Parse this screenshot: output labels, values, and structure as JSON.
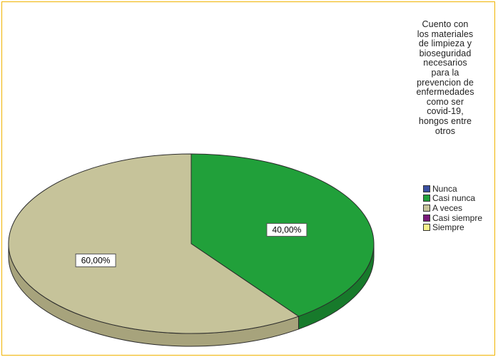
{
  "chart_data": {
    "type": "pie",
    "legend_title": "Cuento con los materiales de limpieza y bioseguridad necesarios para la prevencion de enfermedades como ser covid-19, hongos entre otros",
    "legend_title_lines": [
      "Cuento con",
      "los materiales",
      "de limpieza y",
      "bioseguridad",
      "necesarios",
      "para la",
      "prevencion de",
      "enfermedades",
      "como ser",
      "covid-19,",
      "hongos entre",
      "otros"
    ],
    "legend_position": "right",
    "categories": [
      "Nunca",
      "Casi nunca",
      "A veces",
      "Casi siempre",
      "Siempre"
    ],
    "values": [
      0,
      40,
      60,
      0,
      0
    ],
    "labels": [
      "",
      "40,00%",
      "60,00%",
      "",
      ""
    ],
    "colors": [
      "#3a4fa0",
      "#21a03a",
      "#c6c39a",
      "#7a1a7a",
      "#f7f28a"
    ],
    "side_colors": [
      "#2a3a78",
      "#177a2b",
      "#a7a37c",
      "#5a125a",
      "#cfc96a"
    ],
    "style": "3d"
  }
}
